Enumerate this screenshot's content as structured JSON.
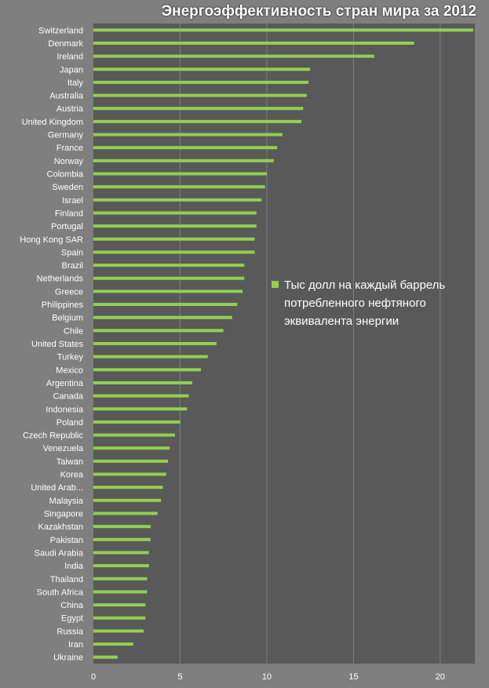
{
  "chart_data": {
    "type": "bar",
    "orientation": "horizontal",
    "title": "Энергоэффективность стран мира за 2012",
    "xlabel": "",
    "ylabel": "",
    "xlim": [
      0,
      22
    ],
    "ticks": [
      0,
      5,
      10,
      15,
      20
    ],
    "grid": true,
    "legend_position": "right",
    "categories": [
      "Switzerland",
      "Denmark",
      "Ireland",
      "Japan",
      "Italy",
      "Australia",
      "Austria",
      "United Kingdom",
      "Germany",
      "France",
      "Norway",
      "Colombia",
      "Sweden",
      "Israel",
      "Finland",
      "Portugal",
      "Hong Kong SAR",
      "Spain",
      "Brazil",
      "Netherlands",
      "Greece",
      "Philippines",
      "Belgium",
      "Chile",
      "United States",
      "Turkey",
      "Mexico",
      "Argentina",
      "Canada",
      "Indonesia",
      "Poland",
      "Czech Republic",
      "Venezuela",
      "Taiwan",
      "Korea",
      "United Arab...",
      "Malaysia",
      "Singapore",
      "Kazakhstan",
      "Pakistan",
      "Saudi Arabia",
      "India",
      "Thailand",
      "South Africa",
      "China",
      "Egypt",
      "Russia",
      "Iran",
      "Ukraine"
    ],
    "series": [
      {
        "name": "Тыс долл на каждый баррель потребленного нефтяного эквивалента энергии",
        "color": "#92d050",
        "values": [
          21.9,
          18.5,
          16.2,
          12.5,
          12.4,
          12.3,
          12.1,
          12.0,
          10.9,
          10.6,
          10.4,
          10.0,
          9.9,
          9.7,
          9.4,
          9.4,
          9.3,
          9.3,
          8.7,
          8.7,
          8.6,
          8.3,
          8.0,
          7.5,
          7.1,
          6.6,
          6.2,
          5.7,
          5.5,
          5.4,
          5.0,
          4.7,
          4.4,
          4.3,
          4.2,
          4.0,
          3.9,
          3.7,
          3.3,
          3.3,
          3.2,
          3.2,
          3.1,
          3.1,
          3.0,
          3.0,
          2.9,
          2.3,
          1.4
        ]
      }
    ],
    "colors": {
      "background": "#7f7f7f",
      "plot_area": "#595959",
      "gridline": "#7f7f7f",
      "text": "#ffffff"
    }
  }
}
